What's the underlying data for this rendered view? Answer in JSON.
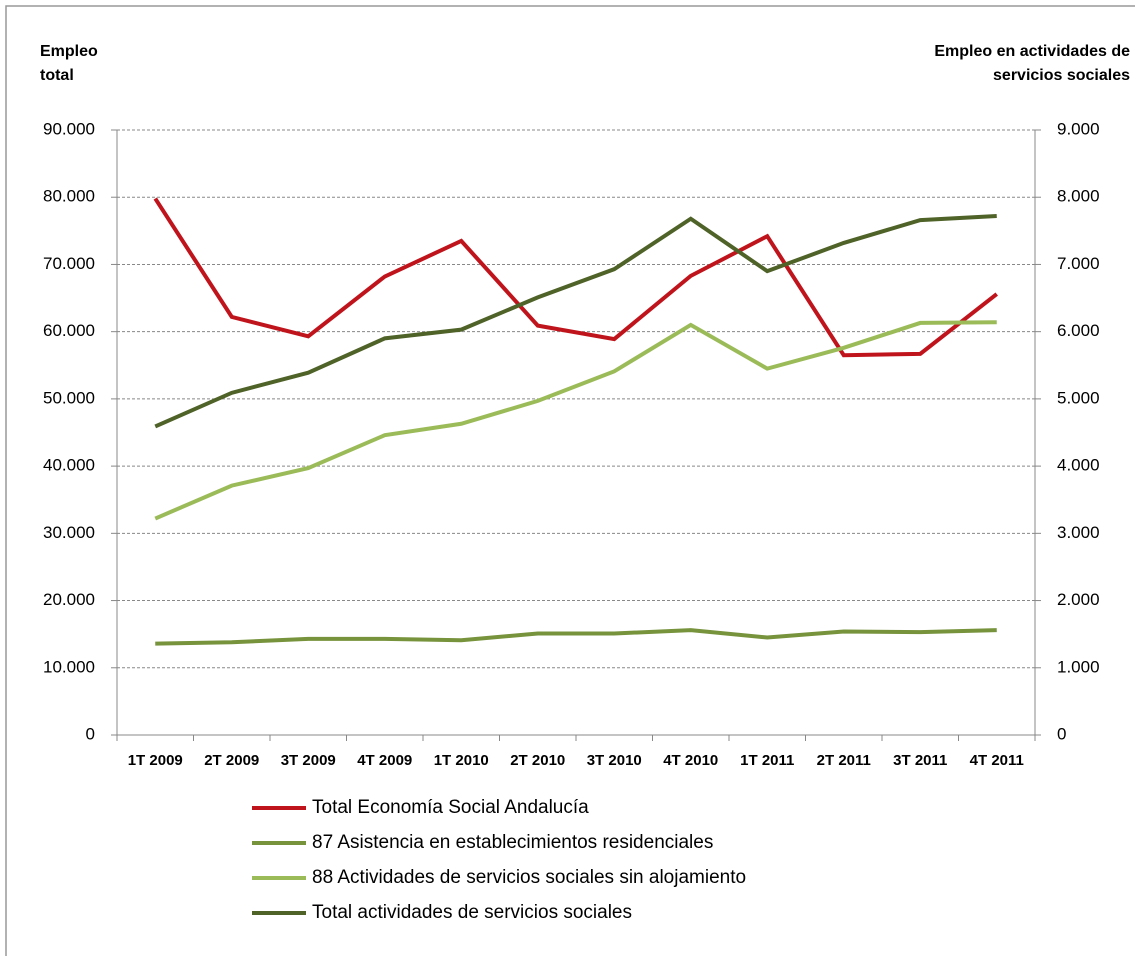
{
  "chart_data": {
    "type": "line",
    "y_label": "Empleo total",
    "y2_label": "Empleo en actividades de servicios sociales",
    "categories": [
      "1T 2009",
      "2T 2009",
      "3T 2009",
      "4T 2009",
      "1T 2010",
      "2T 2010",
      "3T 2010",
      "4T 2010",
      "1T 2011",
      "2T 2011",
      "3T 2011",
      "4T 2011"
    ],
    "series": [
      {
        "name": "Total Economía Social Andalucía",
        "color": "#c0141c",
        "values": [
          79800,
          62200,
          59300,
          68200,
          73500,
          60900,
          58900,
          68300,
          74200,
          56500,
          56700,
          65600
        ]
      },
      {
        "name": "87 Asistencia en establecimientos residenciales",
        "color": "#77933c",
        "axis": "y2",
        "values": [
          1360,
          1380,
          1430,
          1430,
          1410,
          1510,
          1510,
          1560,
          1450,
          1540,
          1530,
          1560
        ]
      },
      {
        "name": "88 Actividades de servicios sociales sin alojamiento",
        "color": "#9bbb59",
        "axis": "y2",
        "values": [
          3220,
          3710,
          3970,
          4460,
          4630,
          4970,
          5410,
          6100,
          5450,
          5760,
          6130,
          6140
        ]
      },
      {
        "name": "Total actividades de servicios sociales",
        "color": "#4f6228",
        "axis": "y2",
        "values": [
          4590,
          5090,
          5390,
          5900,
          6030,
          6510,
          6930,
          7680,
          6900,
          7320,
          7660,
          7720
        ]
      }
    ],
    "ylim": [
      0,
      90000
    ],
    "yticks": [
      0,
      {
        "value": 10000,
        "label": "10.000"
      },
      {
        "value": 20000,
        "label": "20.000"
      },
      {
        "value": 30000,
        "label": "30.000"
      },
      {
        "value": 40000,
        "label": "40.000"
      },
      {
        "value": 50000,
        "label": "50.000"
      },
      {
        "value": 60000,
        "label": "60.000"
      },
      {
        "value": 70000,
        "label": "70.000"
      },
      {
        "value": 80000,
        "label": "80.000"
      },
      {
        "value": 90000,
        "label": "90.000"
      }
    ],
    "y2lim": [
      0,
      9000
    ],
    "y2ticks": [
      0,
      {
        "value": 1000,
        "label": "1.000"
      },
      {
        "value": 2000,
        "label": "2.000"
      },
      {
        "value": 3000,
        "label": "3.000"
      },
      {
        "value": 4000,
        "label": "4.000"
      },
      {
        "value": 5000,
        "label": "5.000"
      },
      {
        "value": 6000,
        "label": "6.000"
      },
      {
        "value": 7000,
        "label": "7.000"
      },
      {
        "value": 8000,
        "label": "8.000"
      },
      {
        "value": 9000,
        "label": "9.000"
      }
    ],
    "grid": true
  }
}
